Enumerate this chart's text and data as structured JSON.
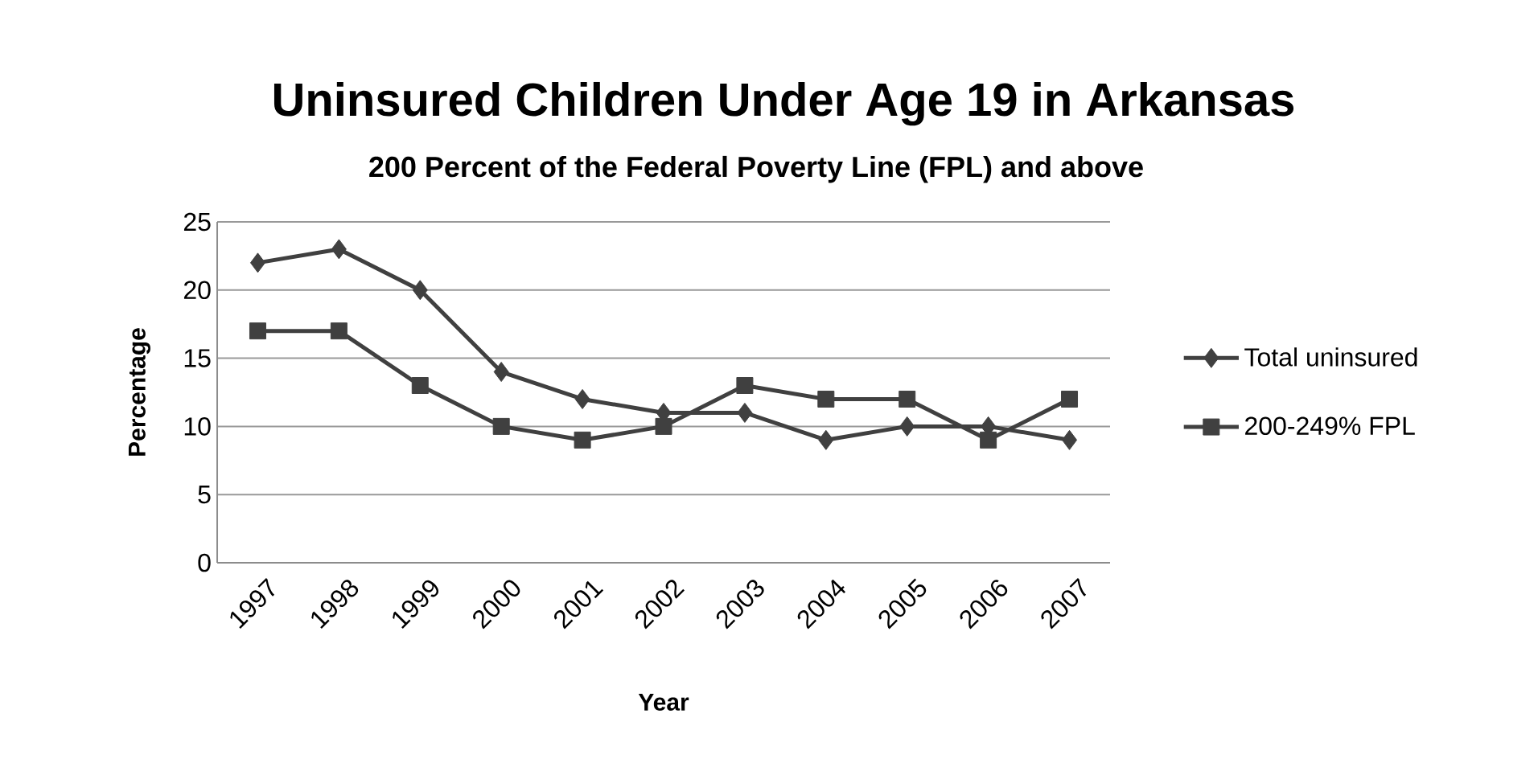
{
  "chart_data": {
    "type": "line",
    "title": "Uninsured Children Under Age 19 in Arkansas",
    "subtitle": "200 Percent of the Federal Poverty Line (FPL) and above",
    "xlabel": "Year",
    "ylabel": "Percentage",
    "categories": [
      "1997",
      "1998",
      "1999",
      "2000",
      "2001",
      "2002",
      "2003",
      "2004",
      "2005",
      "2006",
      "2007"
    ],
    "series": [
      {
        "name": "Total uninsured",
        "color": "#404040",
        "marker": "diamond",
        "values": [
          22,
          23,
          20,
          14,
          12,
          11,
          11,
          9,
          10,
          10,
          9
        ]
      },
      {
        "name": "200-249% FPL",
        "color": "#404040",
        "marker": "square",
        "values": [
          17,
          17,
          13,
          10,
          9,
          10,
          13,
          12,
          12,
          9,
          12
        ]
      }
    ],
    "ylim": [
      0,
      25
    ],
    "yticks": [
      0,
      5,
      10,
      15,
      20,
      25
    ],
    "grid": "y",
    "legend": "right"
  }
}
